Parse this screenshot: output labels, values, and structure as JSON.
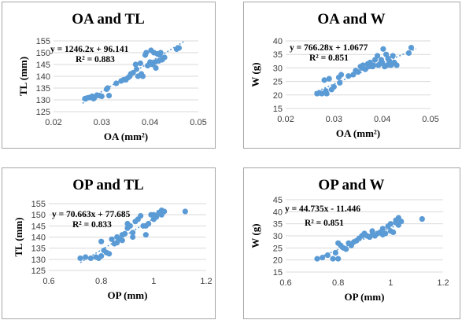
{
  "chart_data": [
    {
      "type": "scatter",
      "title": "OA and TL",
      "xlabel": "OA (mm²)",
      "ylabel": "TL (mm)",
      "xlim": [
        0.02,
        0.05
      ],
      "ylim": [
        125,
        155
      ],
      "xticks": [
        "0.02",
        "0.03",
        "0.04",
        "0.05"
      ],
      "yticks": [
        "125",
        "130",
        "135",
        "140",
        "145",
        "150",
        "155"
      ],
      "grid": "horizontal",
      "equation": "y = 1246.2x + 96.141",
      "r2": "R² = 0.883",
      "trendline": {
        "slope": 1246.2,
        "intercept": 96.141,
        "x_range": [
          0.026,
          0.047
        ]
      },
      "x": [
        0.0265,
        0.027,
        0.0275,
        0.028,
        0.0283,
        0.0285,
        0.029,
        0.0295,
        0.03,
        0.031,
        0.0312,
        0.0315,
        0.033,
        0.034,
        0.0345,
        0.035,
        0.0355,
        0.0358,
        0.036,
        0.0365,
        0.037,
        0.0372,
        0.0375,
        0.038,
        0.0382,
        0.0385,
        0.039,
        0.0392,
        0.0395,
        0.0398,
        0.04,
        0.0402,
        0.0405,
        0.0408,
        0.041,
        0.0412,
        0.0415,
        0.0418,
        0.042,
        0.0422,
        0.0425,
        0.043,
        0.0455,
        0.046
      ],
      "y": [
        130.5,
        130.8,
        131,
        131.5,
        130.5,
        131,
        132,
        131.8,
        131.5,
        134.5,
        135,
        131.8,
        137,
        138,
        138.5,
        138.5,
        139.5,
        140,
        141,
        141.5,
        145,
        143,
        140,
        145.5,
        141,
        140,
        149,
        150,
        144.5,
        145,
        146,
        151,
        145,
        150,
        146,
        143.5,
        149.5,
        146.5,
        149,
        150,
        147,
        148,
        151.5,
        152
      ]
    },
    {
      "type": "scatter",
      "title": "OA and W",
      "xlabel": "OA (mm²)",
      "ylabel": "W (g)",
      "xlim": [
        0.02,
        0.05
      ],
      "ylim": [
        15,
        40
      ],
      "xticks": [
        "0.02",
        "0.03",
        "0.04",
        "0.05"
      ],
      "yticks": [
        "15",
        "20",
        "25",
        "30",
        "35",
        "40"
      ],
      "grid": "horizontal",
      "equation": "y = 766.28x + 1.0677",
      "r2": "R² = 0.851",
      "trendline": {
        "slope": 766.28,
        "intercept": 1.0677,
        "x_range": [
          0.026,
          0.047
        ]
      },
      "x": [
        0.0265,
        0.027,
        0.0275,
        0.028,
        0.0283,
        0.0285,
        0.029,
        0.0295,
        0.03,
        0.031,
        0.0312,
        0.0315,
        0.033,
        0.034,
        0.0345,
        0.035,
        0.0355,
        0.0358,
        0.036,
        0.0365,
        0.037,
        0.0372,
        0.0375,
        0.038,
        0.0382,
        0.0385,
        0.039,
        0.0392,
        0.0395,
        0.0398,
        0.04,
        0.0402,
        0.0405,
        0.0408,
        0.041,
        0.0412,
        0.0415,
        0.0418,
        0.042,
        0.0422,
        0.0425,
        0.043,
        0.0455,
        0.046
      ],
      "y": [
        20.5,
        20.8,
        20.5,
        25.5,
        21.5,
        20.5,
        26,
        22,
        23,
        26.5,
        24.5,
        27.5,
        27,
        27.5,
        29,
        28.5,
        30.5,
        30,
        31,
        29.5,
        31.5,
        30.5,
        32,
        30.5,
        31,
        33,
        34.5,
        31,
        31.5,
        33,
        32,
        37,
        30.5,
        35,
        31,
        33.5,
        32.5,
        31,
        31.5,
        34.5,
        32,
        31,
        35.5,
        37.5
      ]
    },
    {
      "type": "scatter",
      "title": "OP and TL",
      "xlabel": "OP (mm)",
      "ylabel": "TL (mm)",
      "xlim": [
        0.6,
        1.2
      ],
      "ylim": [
        125,
        155
      ],
      "xticks": [
        "0.6",
        "0.8",
        "1",
        "1.2"
      ],
      "yticks": [
        "125",
        "130",
        "135",
        "140",
        "145",
        "150",
        "155"
      ],
      "grid": "horizontal",
      "equation": "y = 70.663x + 77.685",
      "r2": "R² = 0.833",
      "trendline": {
        "slope": 70.663,
        "intercept": 77.685,
        "x_range": [
          0.72,
          1.04
        ]
      },
      "x": [
        0.72,
        0.74,
        0.76,
        0.78,
        0.79,
        0.8,
        0.8,
        0.81,
        0.82,
        0.83,
        0.84,
        0.85,
        0.86,
        0.86,
        0.87,
        0.88,
        0.89,
        0.9,
        0.9,
        0.91,
        0.92,
        0.93,
        0.94,
        0.95,
        0.96,
        0.97,
        0.98,
        0.99,
        1.0,
        1.0,
        1.01,
        1.02,
        1.02,
        1.03,
        1.03,
        1.04,
        1.12,
        0.97,
        0.92,
        0.88
      ],
      "y": [
        130.5,
        131,
        130.5,
        131,
        130.5,
        131.5,
        138,
        134,
        133,
        132.5,
        139,
        137,
        137.5,
        140,
        139,
        141,
        141.5,
        144,
        146,
        145,
        140,
        147,
        148,
        149.5,
        145,
        141,
        146,
        150,
        148,
        150,
        149,
        150.5,
        151,
        150,
        152,
        151.5,
        151.5,
        145,
        142,
        138.5
      ]
    },
    {
      "type": "scatter",
      "title": "OP and W",
      "xlabel": "OP (mm)",
      "ylabel": "W (g)",
      "xlim": [
        0.6,
        1.2
      ],
      "ylim": [
        15,
        45
      ],
      "xticks": [
        "0.6",
        "0.8",
        "1",
        "1.2"
      ],
      "yticks": [
        "15",
        "20",
        "25",
        "30",
        "35",
        "40",
        "45"
      ],
      "grid": "horizontal",
      "equation": "y = 44.735x - 11.446",
      "r2": "R² = 0.851",
      "trendline": {
        "slope": 44.735,
        "intercept": -11.446,
        "x_range": [
          0.72,
          1.05
        ]
      },
      "x": [
        0.72,
        0.74,
        0.76,
        0.78,
        0.79,
        0.8,
        0.8,
        0.81,
        0.82,
        0.83,
        0.84,
        0.85,
        0.86,
        0.87,
        0.88,
        0.89,
        0.9,
        0.9,
        0.91,
        0.92,
        0.93,
        0.94,
        0.95,
        0.96,
        0.97,
        0.98,
        0.99,
        1.0,
        1.0,
        1.01,
        1.02,
        1.02,
        1.03,
        1.03,
        1.04,
        1.12,
        0.97,
        0.93
      ],
      "y": [
        20.5,
        21,
        22,
        20.5,
        23,
        20.5,
        27,
        26,
        25,
        24.5,
        27,
        26,
        27.5,
        28,
        29,
        30,
        30.5,
        31,
        30,
        29.5,
        32,
        30,
        31,
        31.5,
        33,
        31,
        34,
        32,
        35,
        31.5,
        35.5,
        36.5,
        34.5,
        37.5,
        36,
        37,
        30.5,
        30.5
      ]
    }
  ],
  "colors": {
    "point": "#5b9bd5",
    "trendline": "#5b9bd5",
    "frame": "#a6a6a6",
    "grid": "#d9d9d9",
    "text": "#000000",
    "axis_text": "#404040"
  }
}
